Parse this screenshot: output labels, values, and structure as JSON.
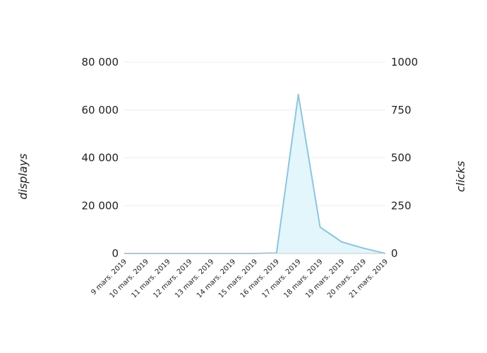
{
  "chart_data": {
    "type": "area",
    "x": [
      "9 mars. 2019",
      "10 mars. 2019",
      "11 mars. 2019",
      "12 mars. 2019",
      "13 mars. 2019",
      "14 mars. 2019",
      "15 mars. 2019",
      "16 mars. 2019",
      "17 mars. 2019",
      "18 mars. 2019",
      "19 mars. 2019",
      "20 mars. 2019",
      "21 mars. 2019"
    ],
    "series": [
      {
        "name": "displays",
        "axis": "left",
        "values": [
          0,
          0,
          0,
          0,
          0,
          0,
          0,
          200,
          66500,
          11000,
          4800,
          2200,
          0
        ],
        "color": "#8ec5dc",
        "fill": "#e3f6fc"
      }
    ],
    "left_axis": {
      "label": "displays",
      "range": [
        0,
        80000
      ],
      "ticks": [
        0,
        20000,
        40000,
        60000,
        80000
      ],
      "tick_labels": [
        "0",
        "20 000",
        "40 000",
        "60 000",
        "80 000"
      ]
    },
    "right_axis": {
      "label": "clicks",
      "range": [
        0,
        1000
      ],
      "ticks": [
        0,
        250,
        500,
        750,
        1000
      ],
      "tick_labels": [
        "0",
        "250",
        "500",
        "750",
        "1000"
      ]
    },
    "grid": true,
    "legend": "none"
  }
}
